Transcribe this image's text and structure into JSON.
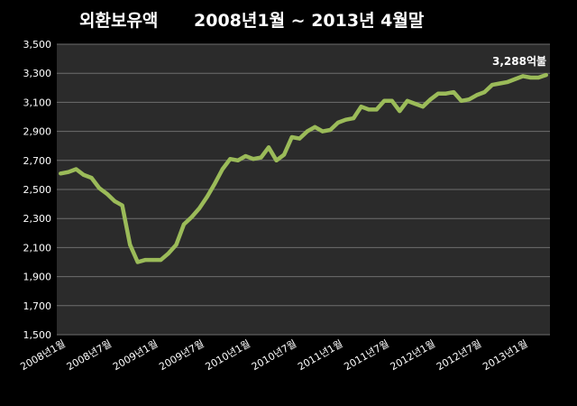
{
  "chart_data": {
    "type": "line",
    "title_part1": "외환보유액",
    "title_part2": "2008년1월 ~ 2013년 4월말",
    "colors": {
      "line": "#9bbb59",
      "plot_background": "#2b2b2b",
      "gridline": "#6e6e6e",
      "background": "#000000",
      "text": "#ffffff"
    },
    "ylim": [
      1500,
      3500
    ],
    "y_ticks": [
      "1,500",
      "1,700",
      "1,900",
      "2,100",
      "2,300",
      "2,500",
      "2,700",
      "2,900",
      "3,100",
      "3,300",
      "3,500"
    ],
    "grid": true,
    "legend": "none",
    "x_tick_labels": [
      "2008년1월",
      "2008년7월",
      "2009년1월",
      "2009년7월",
      "2010년1월",
      "2010년7월",
      "2011년1월",
      "2011년7월",
      "2012년1월",
      "2012년7월",
      "2013년1월"
    ],
    "series": [
      {
        "values": [
          2610,
          2620,
          2640,
          2600,
          2580,
          2510,
          2470,
          2420,
          2390,
          2120,
          2000,
          2015,
          2015,
          2015,
          2060,
          2120,
          2260,
          2310,
          2370,
          2450,
          2540,
          2640,
          2710,
          2700,
          2730,
          2710,
          2720,
          2790,
          2700,
          2740,
          2860,
          2850,
          2900,
          2930,
          2900,
          2910,
          2960,
          2980,
          2990,
          3070,
          3050,
          3050,
          3110,
          3110,
          3040,
          3110,
          3090,
          3070,
          3120,
          3160,
          3160,
          3170,
          3110,
          3120,
          3150,
          3170,
          3220,
          3230,
          3240,
          3260,
          3280,
          3270,
          3270,
          3288
        ]
      }
    ],
    "annotation": "3,288억불"
  }
}
